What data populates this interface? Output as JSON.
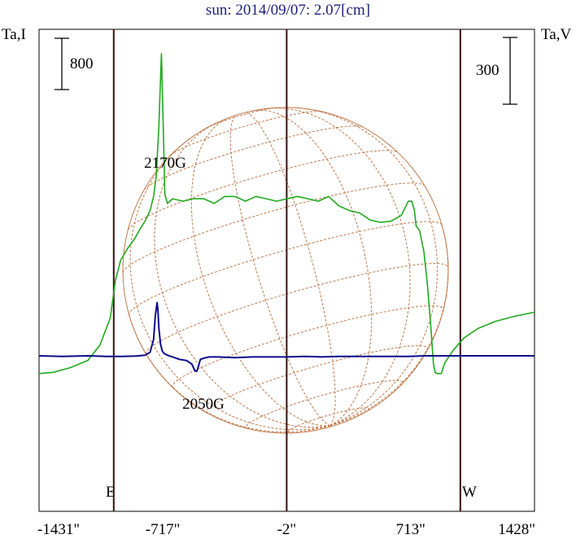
{
  "chart_data": {
    "type": "line",
    "title": "sun: 2014/09/07: 2.07[cm]",
    "left_axis_label": "Ta,I",
    "right_axis_label": "Ta,V",
    "left_scale_bar": "800",
    "right_scale_bar": "300",
    "limb_labels": {
      "east": "E",
      "west": "W"
    },
    "x_ticks": [
      "-1431\"",
      "-717\"",
      "-2\"",
      "713\"",
      "1428\""
    ],
    "x_tick_values": [
      -1431,
      -717,
      -2,
      713,
      1428
    ],
    "xlim": [
      -1431,
      1428
    ],
    "vertical_markers": [
      -1000,
      -2,
      1000
    ],
    "annotations": [
      {
        "text": "2170G",
        "x": -750
      },
      {
        "text": "2050G",
        "x": -520
      }
    ],
    "grid": false,
    "series": [
      {
        "color": "#1faa1f",
        "x": [
          -1431,
          -1350,
          -1250,
          -1150,
          -1080,
          -1020,
          -990,
          -960,
          -920,
          -880,
          -850,
          -820,
          -790,
          -770,
          -755,
          -740,
          -725,
          -715,
          -705,
          -690,
          -660,
          -600,
          -540,
          -480,
          -420,
          -360,
          -300,
          -240,
          -180,
          -120,
          -60,
          0,
          60,
          120,
          180,
          240,
          300,
          360,
          420,
          480,
          540,
          600,
          660,
          700,
          720,
          735,
          745,
          765,
          790,
          810,
          830,
          845,
          855,
          865,
          875,
          890,
          910,
          960,
          1020,
          1100,
          1200,
          1300,
          1428
        ],
        "y": [
          -1.5,
          -1.4,
          -1.0,
          -0.4,
          0.9,
          3.2,
          6.4,
          8.1,
          9.1,
          9.9,
          10.7,
          11.4,
          12.3,
          13.5,
          15.2,
          19.3,
          25.6,
          19.9,
          13.7,
          12.9,
          13.3,
          13.1,
          13.3,
          13.3,
          12.9,
          13.5,
          13.5,
          13.1,
          13.5,
          13.3,
          13.1,
          13.3,
          13.5,
          13.3,
          13.1,
          13.5,
          12.7,
          12.3,
          12.1,
          11.5,
          11.3,
          11.4,
          11.9,
          13.1,
          13.1,
          12.3,
          11.0,
          10.6,
          8.8,
          6.0,
          2.4,
          -0.7,
          -1.4,
          -1.5,
          -1.5,
          -1.5,
          -0.6,
          0.5,
          1.5,
          2.3,
          2.9,
          3.3,
          3.7
        ]
      },
      {
        "color": "#0c0c8a",
        "x": [
          -1431,
          -1300,
          -1150,
          -1050,
          -950,
          -870,
          -820,
          -790,
          -770,
          -760,
          -750,
          -745,
          -740,
          -730,
          -720,
          -710,
          -690,
          -660,
          -620,
          -580,
          -550,
          -530,
          -520,
          -510,
          -500,
          -480,
          -450,
          -400,
          -300,
          -200,
          -100,
          0,
          100,
          200,
          300,
          400,
          500,
          600,
          700,
          800,
          900,
          1000,
          1100,
          1200,
          1300,
          1428
        ],
        "y": [
          0.0,
          -0.05,
          0.0,
          -0.05,
          -0.05,
          -0.02,
          0.05,
          0.3,
          1.4,
          3.4,
          4.5,
          3.9,
          2.4,
          1.0,
          0.4,
          0.2,
          0.05,
          -0.1,
          -0.3,
          -0.4,
          -0.7,
          -1.3,
          -1.3,
          -0.8,
          -0.3,
          -0.2,
          -0.1,
          -0.1,
          -0.15,
          -0.1,
          -0.1,
          -0.1,
          -0.05,
          -0.1,
          -0.05,
          -0.05,
          -0.05,
          -0.05,
          -0.05,
          0.0,
          0.0,
          0.0,
          0.0,
          0.0,
          0.0,
          0.0
        ]
      }
    ]
  }
}
